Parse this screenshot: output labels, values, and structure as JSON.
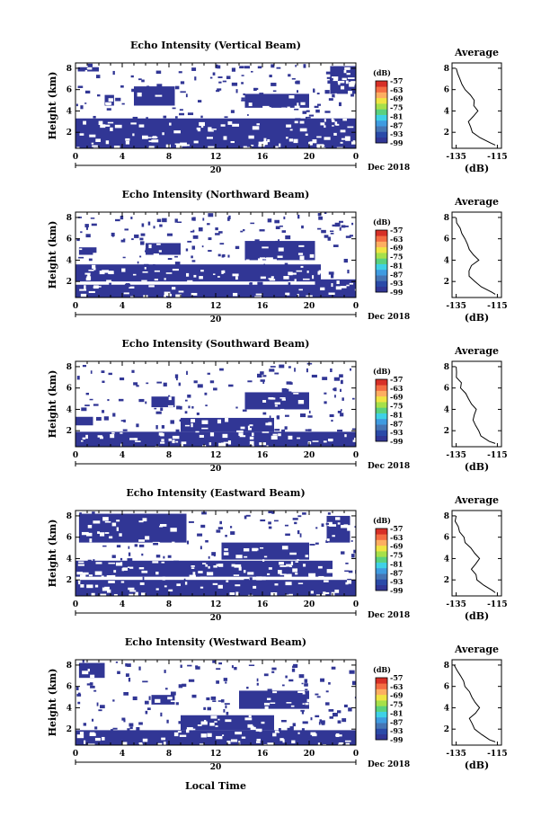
{
  "colorbar": {
    "unit": "(dB)",
    "ticks": [
      "-57",
      "-63",
      "-69",
      "-75",
      "-81",
      "-87",
      "-93",
      "-99"
    ],
    "colors": [
      "#313695",
      "#2a4aa8",
      "#4575b4",
      "#3f9be0",
      "#3fd1e6",
      "#5ad17e",
      "#a6e04a",
      "#f0e442",
      "#fdae61",
      "#f46d43",
      "#d73027"
    ]
  },
  "date_label": "Dec 2018",
  "xlabel": "Local Time",
  "main_xticks": [
    "0",
    "4",
    "8",
    "12",
    "16",
    "20",
    "0"
  ],
  "sub_tick": "20",
  "ylabel": "Height (km)",
  "main_yticks": [
    "2",
    "4",
    "6",
    "8"
  ],
  "profile": {
    "title": "Average",
    "xticks": [
      "-135",
      "-115"
    ],
    "yticks": [
      "2",
      "4",
      "6",
      "8"
    ],
    "xlabel": "(dB)"
  },
  "chart_data": [
    {
      "type": "heatmap",
      "title": "Echo Intensity (Vertical Beam)",
      "xlabel": "Local Time",
      "ylabel": "Height (km)",
      "xlim": [
        0,
        24
      ],
      "ylim": [
        0.5,
        8.5
      ],
      "clim": [
        -99,
        -57
      ],
      "background_value": -99,
      "blobs": [
        {
          "x0": 0,
          "x1": 24,
          "y0": 0.5,
          "y1": 3.3,
          "value": -99
        },
        {
          "x0": 14.5,
          "x1": 20,
          "y0": 4.3,
          "y1": 5.6,
          "value": -99
        },
        {
          "x0": 5,
          "x1": 8.5,
          "y0": 4.5,
          "y1": 6.3,
          "value": -99
        },
        {
          "x0": 2.5,
          "x1": 3.3,
          "y0": 4.5,
          "y1": 5.5,
          "value": -99
        },
        {
          "x0": 21.8,
          "x1": 24,
          "y0": 5.6,
          "y1": 8.2,
          "value": -99
        },
        {
          "x0": 0.2,
          "x1": 2,
          "y0": 7.7,
          "y1": 8.1,
          "value": -99
        },
        {
          "x0": 12.5,
          "x1": 14.2,
          "y0": 0.5,
          "y1": 1.1,
          "value": -96
        }
      ],
      "profile": {
        "xlim": [
          -137,
          -113
        ],
        "heights": [
          0.8,
          1,
          1.5,
          2,
          2.5,
          3,
          3.5,
          4,
          4.5,
          5,
          5.5,
          6,
          6.5,
          7,
          7.5,
          8
        ],
        "values": [
          -116,
          -118,
          -123,
          -127,
          -128,
          -129,
          -127,
          -124,
          -126,
          -127,
          -129,
          -131,
          -132,
          -133,
          -134,
          -135
        ]
      }
    },
    {
      "type": "heatmap",
      "title": "Echo Intensity (Northward Beam)",
      "xlabel": "Local Time",
      "ylabel": "Height (km)",
      "xlim": [
        0,
        24
      ],
      "ylim": [
        0.5,
        8.5
      ],
      "clim": [
        -99,
        -57
      ],
      "background_value": -99,
      "blobs": [
        {
          "x0": 0,
          "x1": 24,
          "y0": 0.5,
          "y1": 1.7,
          "value": -99
        },
        {
          "x0": 0,
          "x1": 21,
          "y0": 2.0,
          "y1": 3.6,
          "value": -99
        },
        {
          "x0": 14.5,
          "x1": 20.5,
          "y0": 4.0,
          "y1": 5.8,
          "value": -99
        },
        {
          "x0": 6,
          "x1": 9,
          "y0": 4.5,
          "y1": 5.6,
          "value": -99
        },
        {
          "x0": 0.3,
          "x1": 1.8,
          "y0": 4.5,
          "y1": 5.2,
          "value": -99
        },
        {
          "x0": 20.5,
          "x1": 24,
          "y0": 1.5,
          "y1": 2.2,
          "value": -99
        },
        {
          "x0": 12.5,
          "x1": 14.2,
          "y0": 0.5,
          "y1": 1.1,
          "value": -96
        }
      ],
      "profile": {
        "xlim": [
          -137,
          -113
        ],
        "heights": [
          0.8,
          1,
          1.5,
          2,
          2.5,
          3,
          3.5,
          4,
          4.5,
          5,
          5.5,
          6,
          6.5,
          7,
          7.5,
          8
        ],
        "values": [
          -116,
          -118,
          -122,
          -126,
          -128,
          -129,
          -127,
          -124,
          -126,
          -128,
          -130,
          -131,
          -133,
          -134,
          -135,
          -135
        ]
      }
    },
    {
      "type": "heatmap",
      "title": "Echo Intensity (Southward Beam)",
      "xlabel": "Local Time",
      "ylabel": "Height (km)",
      "xlim": [
        0,
        24
      ],
      "ylim": [
        0.5,
        8.5
      ],
      "clim": [
        -99,
        -57
      ],
      "background_value": -99,
      "blobs": [
        {
          "x0": 0,
          "x1": 24,
          "y0": 0.5,
          "y1": 1.9,
          "value": -99
        },
        {
          "x0": 9,
          "x1": 17,
          "y0": 1.9,
          "y1": 3.2,
          "value": -99
        },
        {
          "x0": 14.5,
          "x1": 20,
          "y0": 4.0,
          "y1": 5.6,
          "value": -99
        },
        {
          "x0": 6.5,
          "x1": 8.5,
          "y0": 4.2,
          "y1": 5.2,
          "value": -99
        },
        {
          "x0": 0,
          "x1": 1.5,
          "y0": 2.5,
          "y1": 3.3,
          "value": -99
        },
        {
          "x0": 12.5,
          "x1": 14.2,
          "y0": 0.5,
          "y1": 1.1,
          "value": -96
        }
      ],
      "profile": {
        "xlim": [
          -137,
          -113
        ],
        "heights": [
          0.8,
          1,
          1.5,
          2,
          2.5,
          3,
          3.5,
          4,
          4.5,
          5,
          5.5,
          6,
          6.5,
          7,
          7.5,
          8
        ],
        "values": [
          -116,
          -118,
          -122,
          -125,
          -126,
          -127,
          -126,
          -125,
          -127,
          -129,
          -130,
          -132,
          -133,
          -134,
          -135,
          -135
        ]
      }
    },
    {
      "type": "heatmap",
      "title": "Echo Intensity (Eastward Beam)",
      "xlabel": "Local Time",
      "ylabel": "Height (km)",
      "xlim": [
        0,
        24
      ],
      "ylim": [
        0.5,
        8.5
      ],
      "clim": [
        -99,
        -57
      ],
      "background_value": -99,
      "blobs": [
        {
          "x0": 0,
          "x1": 24,
          "y0": 0.5,
          "y1": 2.0,
          "value": -99
        },
        {
          "x0": 0,
          "x1": 22,
          "y0": 2.3,
          "y1": 3.8,
          "value": -99
        },
        {
          "x0": 12.5,
          "x1": 20,
          "y0": 3.9,
          "y1": 5.5,
          "value": -99
        },
        {
          "x0": 0.3,
          "x1": 9.5,
          "y0": 5.5,
          "y1": 8.2,
          "value": -99
        },
        {
          "x0": 21.5,
          "x1": 23.5,
          "y0": 5.5,
          "y1": 8.0,
          "value": -99
        },
        {
          "x0": 12.5,
          "x1": 14.2,
          "y0": 0.5,
          "y1": 1.1,
          "value": -96
        }
      ],
      "profile": {
        "xlim": [
          -137,
          -113
        ],
        "heights": [
          0.8,
          1,
          1.5,
          2,
          2.5,
          3,
          3.5,
          4,
          4.5,
          5,
          5.5,
          6,
          6.5,
          7,
          7.5,
          8
        ],
        "values": [
          -116,
          -117,
          -121,
          -124,
          -126,
          -127,
          -125,
          -124,
          -126,
          -128,
          -130,
          -131,
          -133,
          -134,
          -135,
          -135
        ]
      }
    },
    {
      "type": "heatmap",
      "title": "Echo Intensity (Westward Beam)",
      "xlabel": "Local Time",
      "ylabel": "Height (km)",
      "xlim": [
        0,
        24
      ],
      "ylim": [
        0.5,
        8.5
      ],
      "clim": [
        -99,
        -57
      ],
      "background_value": -99,
      "blobs": [
        {
          "x0": 0,
          "x1": 24,
          "y0": 0.5,
          "y1": 1.9,
          "value": -99
        },
        {
          "x0": 9,
          "x1": 17,
          "y0": 1.9,
          "y1": 3.3,
          "value": -99
        },
        {
          "x0": 14,
          "x1": 20,
          "y0": 3.9,
          "y1": 5.6,
          "value": -99
        },
        {
          "x0": 6.5,
          "x1": 8.5,
          "y0": 4.3,
          "y1": 5.2,
          "value": -99
        },
        {
          "x0": 0.3,
          "x1": 2.5,
          "y0": 6.8,
          "y1": 8.2,
          "value": -99
        },
        {
          "x0": 12.5,
          "x1": 14.2,
          "y0": 0.5,
          "y1": 1.1,
          "value": -96
        }
      ],
      "profile": {
        "xlim": [
          -137,
          -113
        ],
        "heights": [
          0.8,
          1,
          1.5,
          2,
          2.5,
          3,
          3.5,
          4,
          4.5,
          5,
          5.5,
          6,
          6.5,
          7,
          7.5,
          8
        ],
        "values": [
          -116,
          -118,
          -122,
          -126,
          -127,
          -128,
          -126,
          -124,
          -126,
          -128,
          -129,
          -131,
          -132,
          -133,
          -134,
          -136
        ]
      }
    }
  ]
}
